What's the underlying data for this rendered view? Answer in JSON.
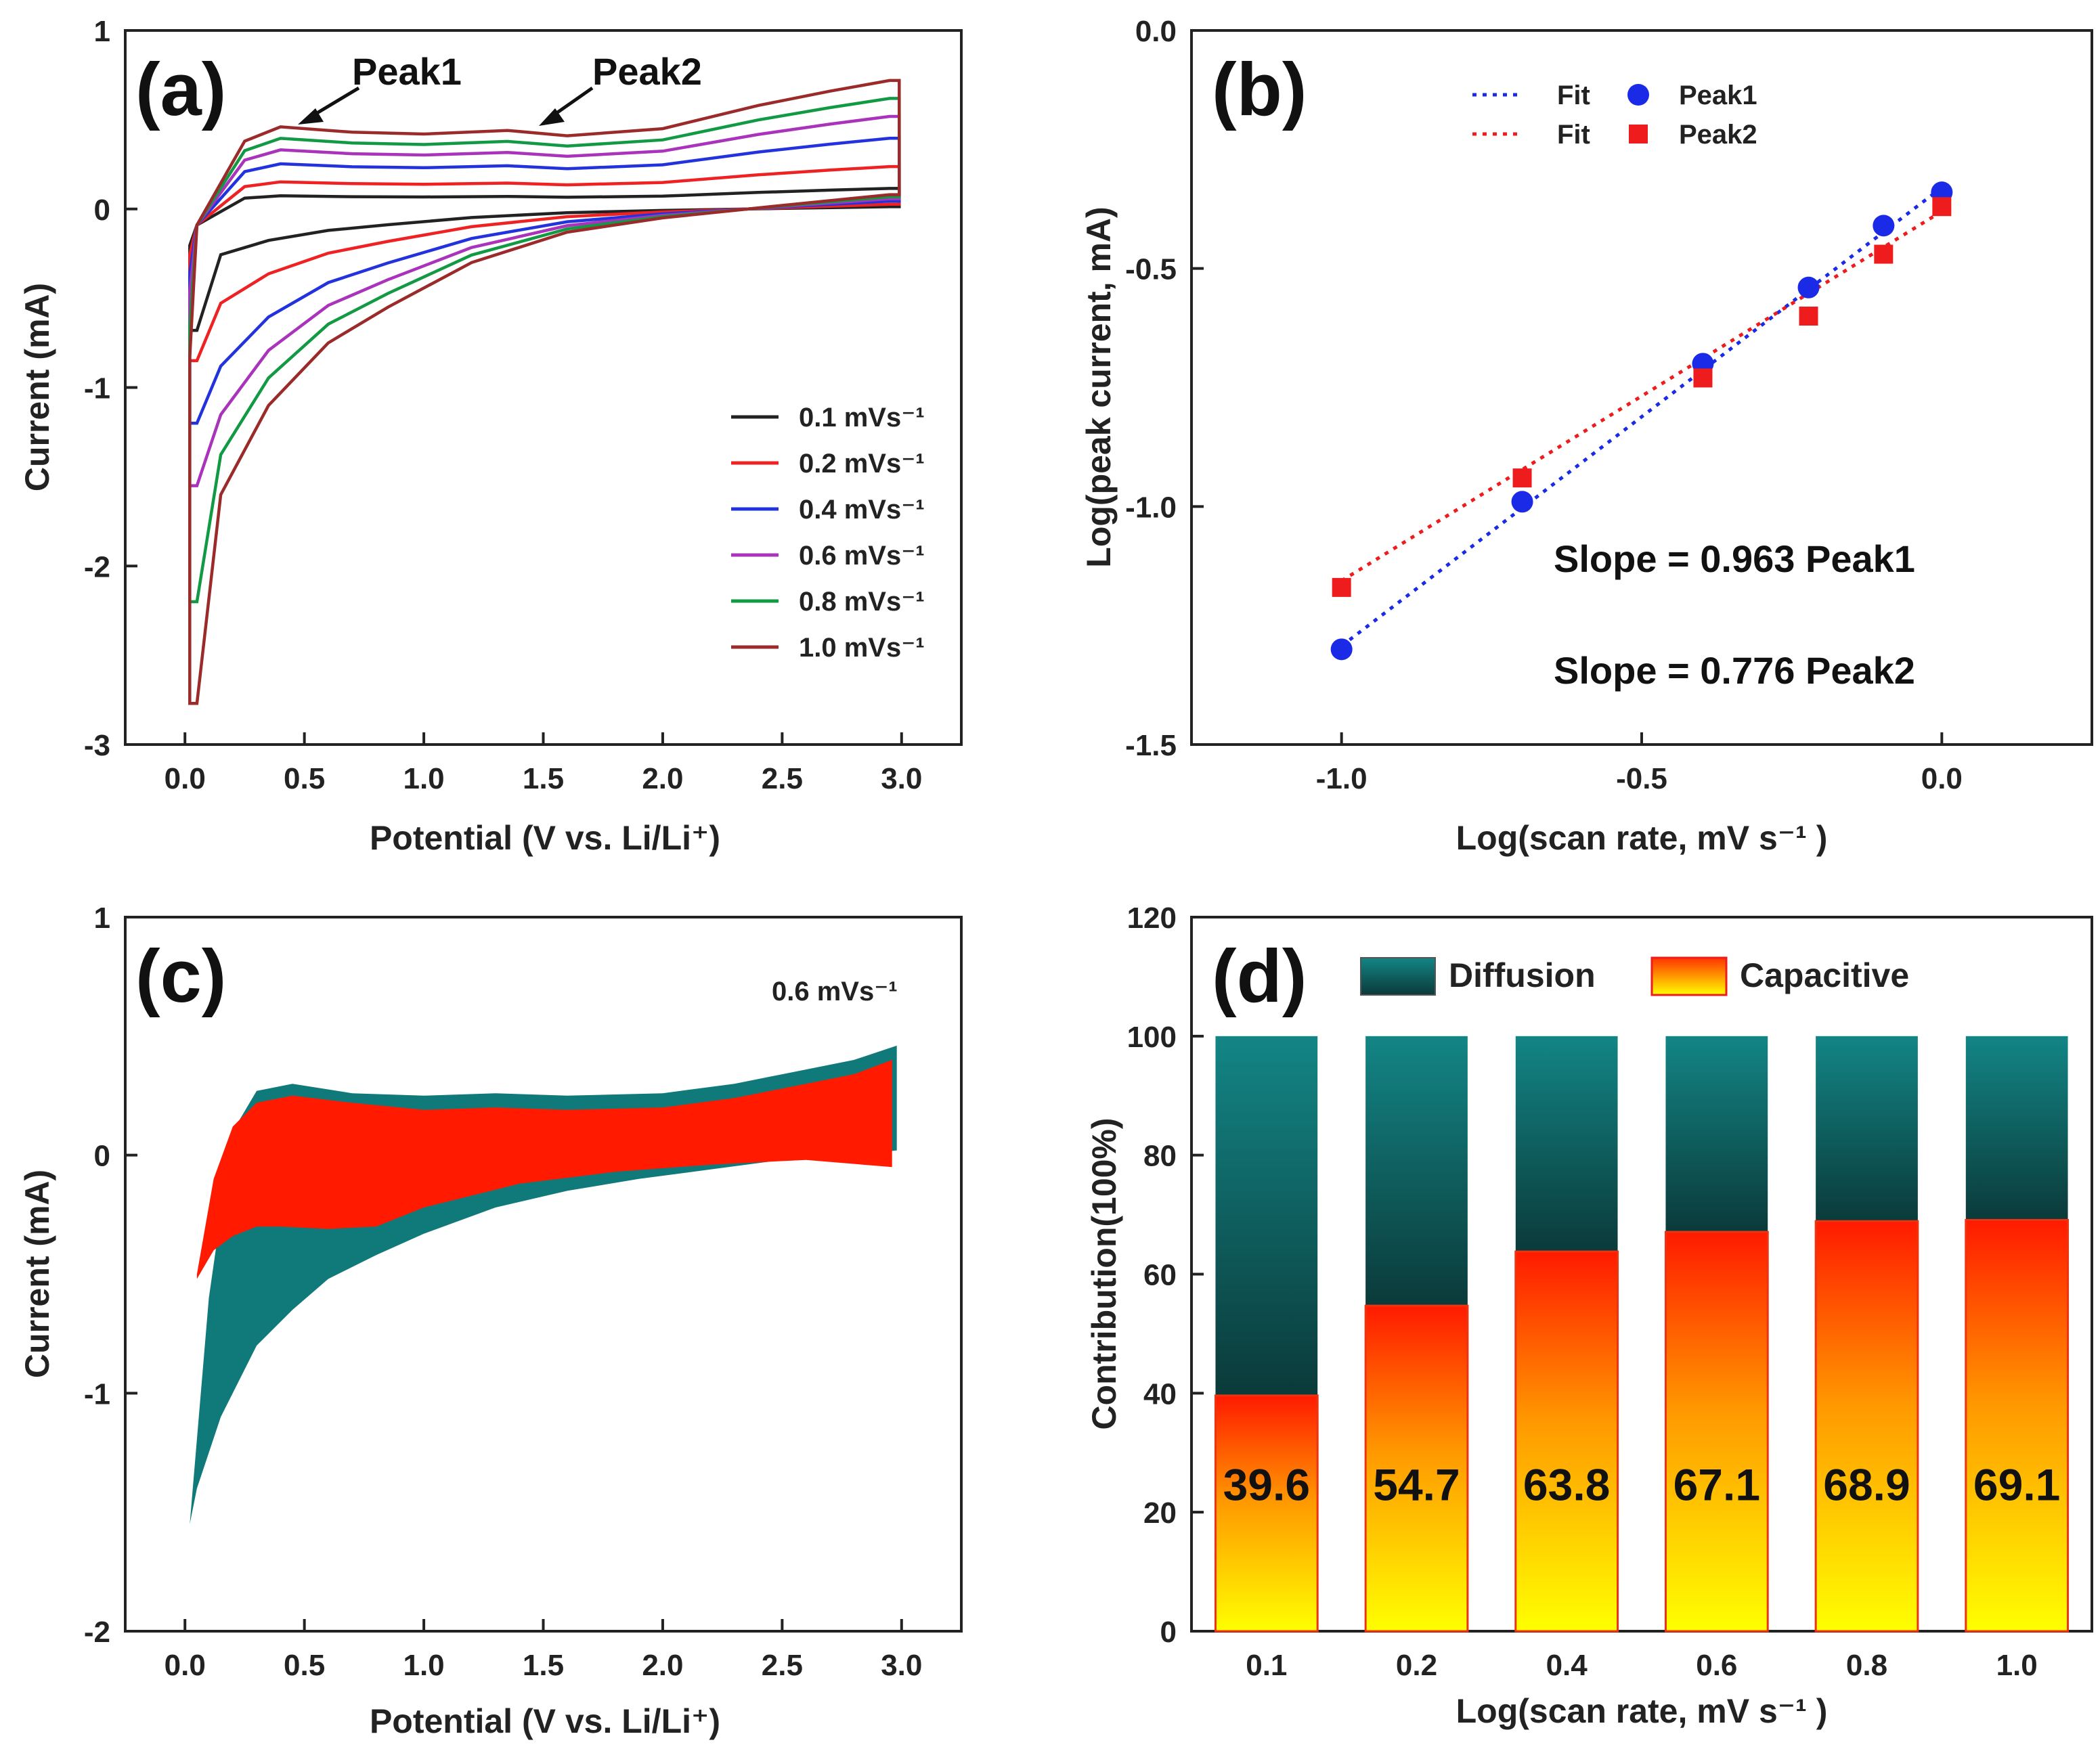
{
  "chart_data": [
    {
      "panel": "(a)",
      "type": "line",
      "xlabel": "Potential (V vs. Li/Li⁺)",
      "ylabel": "Current (mA)",
      "xlim": [
        -0.25,
        3.25
      ],
      "ylim": [
        -3,
        1
      ],
      "xticks": [
        "0.0",
        "0.5",
        "1.0",
        "1.5",
        "2.0",
        "2.5",
        "3.0"
      ],
      "yticks": [
        "1",
        "0",
        "-1",
        "-2",
        "-3"
      ],
      "annotations": [
        "Peak1",
        "Peak2"
      ],
      "series": [
        {
          "name": "0.1 mVs⁻¹",
          "color": "#222222",
          "scale": 0.16,
          "min": -0.68
        },
        {
          "name": "0.2 mVs⁻¹",
          "color": "#ee2222",
          "scale": 0.33,
          "min": -0.85
        },
        {
          "name": "0.4 mVs⁻¹",
          "color": "#2233dd",
          "scale": 0.55,
          "min": -1.2
        },
        {
          "name": "0.6 mVs⁻¹",
          "color": "#aa33bb",
          "scale": 0.72,
          "min": -1.55
        },
        {
          "name": "0.8 mVs⁻¹",
          "color": "#119944",
          "scale": 0.86,
          "min": -2.2
        },
        {
          "name": "1.0 mVs⁻¹",
          "color": "#9b2a2a",
          "scale": 1.0,
          "min": -2.77
        }
      ],
      "anodic_shape": {
        "x": [
          0.05,
          0.25,
          0.4,
          0.7,
          1.0,
          1.35,
          1.6,
          2.0,
          2.4,
          2.7,
          2.95
        ],
        "y": [
          -0.3,
          0.38,
          0.46,
          0.43,
          0.42,
          0.44,
          0.41,
          0.45,
          0.58,
          0.66,
          0.72
        ]
      },
      "cathodic_shape": {
        "x": [
          2.95,
          2.5,
          2.0,
          1.6,
          1.2,
          0.85,
          0.6,
          0.35,
          0.15,
          0.05
        ],
        "y": [
          0.08,
          0.02,
          -0.05,
          -0.13,
          -0.3,
          -0.55,
          -0.75,
          -1.1,
          -1.6,
          -2.3
        ]
      }
    },
    {
      "panel": "(b)",
      "type": "scatter",
      "xlabel": "Log(scan rate, mV s⁻¹ )",
      "ylabel": "Log(peak current, mA)",
      "xlim": [
        -1.25,
        0.25
      ],
      "ylim": [
        -1.5,
        0.0
      ],
      "xticks": [
        "-1.0",
        "-0.5",
        "0.0"
      ],
      "yticks": [
        "0.0",
        "-0.5",
        "-1.0",
        "-1.5"
      ],
      "legend": {
        "fit1": "Fit",
        "fit2": "Fit",
        "peak1": "Peak1",
        "peak2": "Peak2"
      },
      "series": [
        {
          "name": "Peak1",
          "color": "#1a2ae6",
          "x": [
            -1.0,
            -0.699,
            -0.398,
            -0.222,
            -0.097,
            0.0
          ],
          "y": [
            -1.3,
            -0.99,
            -0.7,
            -0.54,
            -0.41,
            -0.34
          ]
        },
        {
          "name": "Peak2",
          "color": "#ee1c1c",
          "x": [
            -1.0,
            -0.699,
            -0.398,
            -0.222,
            -0.097,
            0.0
          ],
          "y": [
            -1.17,
            -0.94,
            -0.73,
            -0.6,
            -0.47,
            -0.37
          ]
        }
      ],
      "fits": [
        {
          "name": "Fit",
          "series": "Peak1",
          "slope": 0.963,
          "intercept": -0.33
        },
        {
          "name": "Fit",
          "series": "Peak2",
          "slope": 0.776,
          "intercept": -0.38
        }
      ],
      "annotations": [
        "Slope = 0.963  Peak1",
        "Slope = 0.776  Peak2"
      ]
    },
    {
      "panel": "(c)",
      "type": "area",
      "xlabel": "Potential (V vs. Li/Li⁺)",
      "ylabel": "Current (mA)",
      "xlim": [
        -0.25,
        3.25
      ],
      "ylim": [
        -2,
        1
      ],
      "xticks": [
        "0.0",
        "0.5",
        "1.0",
        "1.5",
        "2.0",
        "2.5",
        "3.0"
      ],
      "yticks": [
        "1",
        "0",
        "-1",
        "-2"
      ],
      "annotation": "0.6 mVs⁻¹",
      "total_color": "#107a7a",
      "capacitive_color": "#ff1a00",
      "total_upper": {
        "x": [
          0.02,
          0.1,
          0.2,
          0.3,
          0.45,
          0.7,
          1.0,
          1.3,
          1.6,
          2.0,
          2.3,
          2.6,
          2.8,
          2.98
        ],
        "y": [
          -1.55,
          -0.6,
          0.1,
          0.27,
          0.3,
          0.26,
          0.25,
          0.26,
          0.25,
          0.26,
          0.3,
          0.36,
          0.4,
          0.46
        ]
      },
      "total_lower": {
        "x": [
          2.98,
          2.8,
          2.5,
          2.2,
          1.9,
          1.6,
          1.3,
          1.0,
          0.8,
          0.6,
          0.45,
          0.3,
          0.15,
          0.05,
          0.02
        ],
        "y": [
          0.02,
          0.0,
          -0.02,
          -0.06,
          -0.1,
          -0.15,
          -0.22,
          -0.33,
          -0.42,
          -0.52,
          -0.65,
          -0.8,
          -1.1,
          -1.4,
          -1.55
        ]
      },
      "cap_upper": {
        "x": [
          0.05,
          0.12,
          0.2,
          0.3,
          0.45,
          0.7,
          1.0,
          1.3,
          1.6,
          2.0,
          2.3,
          2.6,
          2.8,
          2.96
        ],
        "y": [
          -0.5,
          -0.1,
          0.12,
          0.22,
          0.25,
          0.22,
          0.19,
          0.2,
          0.19,
          0.2,
          0.24,
          0.3,
          0.34,
          0.4
        ]
      },
      "cap_lower": {
        "x": [
          2.96,
          2.6,
          2.2,
          1.8,
          1.4,
          1.0,
          0.8,
          0.6,
          0.4,
          0.3,
          0.2,
          0.12,
          0.05
        ],
        "y": [
          -0.05,
          -0.02,
          -0.04,
          -0.07,
          -0.12,
          -0.22,
          -0.3,
          -0.31,
          -0.3,
          -0.3,
          -0.34,
          -0.4,
          -0.52
        ]
      }
    },
    {
      "panel": "(d)",
      "type": "bar",
      "stacked": true,
      "xlabel": "Log(scan rate, mV s⁻¹ )",
      "ylabel": "Contribution(100%)",
      "ylim": [
        0,
        120
      ],
      "yticks": [
        "0",
        "20",
        "40",
        "60",
        "80",
        "100",
        "120"
      ],
      "categories": [
        "0.1",
        "0.2",
        "0.4",
        "0.6",
        "0.8",
        "1.0"
      ],
      "legend": [
        "Diffusion",
        "Capacitive"
      ],
      "series": [
        {
          "name": "Capacitive",
          "values": [
            39.6,
            54.7,
            63.8,
            67.1,
            68.9,
            69.1
          ]
        },
        {
          "name": "Diffusion",
          "values": [
            60.4,
            45.3,
            36.2,
            32.9,
            31.1,
            30.9
          ]
        }
      ],
      "data_labels": [
        "39.6",
        "54.7",
        "63.8",
        "67.1",
        "68.9",
        "69.1"
      ]
    }
  ]
}
